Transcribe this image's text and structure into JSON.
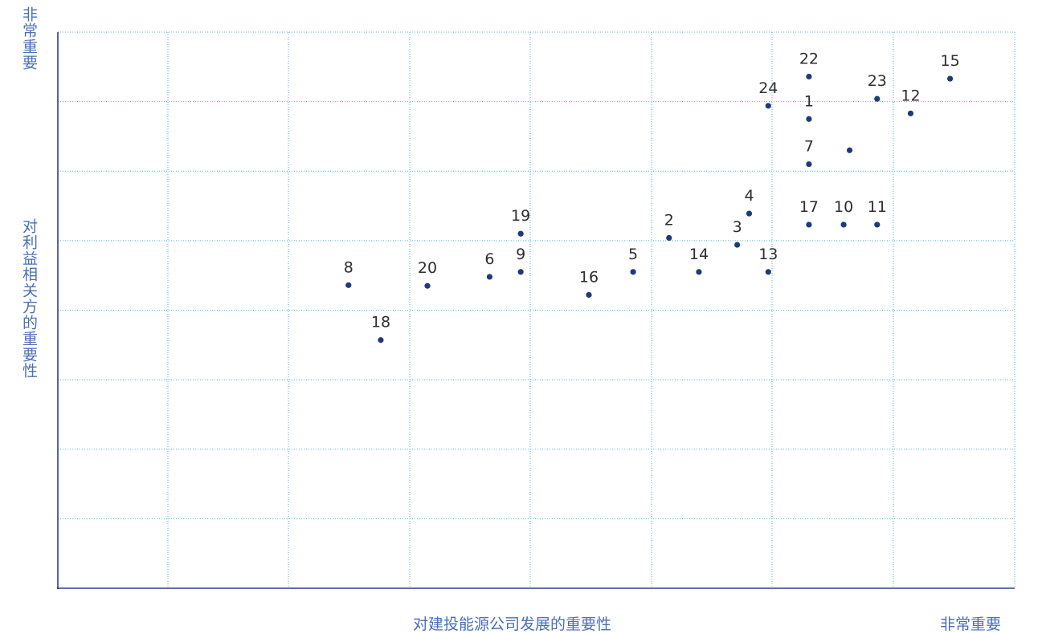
{
  "chart_data": {
    "type": "scatter",
    "xlabel": "对建投能源公司发展的重要性",
    "ylabel": "对利益相关方的重要性",
    "x_high_label": "非常重要",
    "y_high_label": "非常重要",
    "xlim": [
      0,
      8
    ],
    "ylim": [
      0,
      8
    ],
    "grid": true,
    "points": [
      {
        "label": "1",
        "x": 6.28,
        "y": 6.75
      },
      {
        "label": "2",
        "x": 5.11,
        "y": 5.04
      },
      {
        "label": "3",
        "x": 5.68,
        "y": 4.94
      },
      {
        "label": "4",
        "x": 5.78,
        "y": 5.39
      },
      {
        "label": "5",
        "x": 4.81,
        "y": 4.55
      },
      {
        "label": "6",
        "x": 3.61,
        "y": 4.48
      },
      {
        "label": "7",
        "x": 6.28,
        "y": 6.1
      },
      {
        "label": "",
        "x": 6.62,
        "y": 6.3
      },
      {
        "label": "8",
        "x": 2.43,
        "y": 4.36
      },
      {
        "label": "9",
        "x": 3.87,
        "y": 4.55
      },
      {
        "label": "10",
        "x": 6.57,
        "y": 5.23
      },
      {
        "label": "11",
        "x": 6.85,
        "y": 5.23
      },
      {
        "label": "12",
        "x": 7.13,
        "y": 6.83
      },
      {
        "label": "13",
        "x": 5.94,
        "y": 4.55
      },
      {
        "label": "14",
        "x": 5.36,
        "y": 4.55
      },
      {
        "label": "15",
        "x": 7.46,
        "y": 7.33
      },
      {
        "label": "16",
        "x": 4.44,
        "y": 4.22
      },
      {
        "label": "17",
        "x": 6.28,
        "y": 5.23
      },
      {
        "label": "18",
        "x": 2.7,
        "y": 3.57
      },
      {
        "label": "19",
        "x": 3.87,
        "y": 5.1
      },
      {
        "label": "20",
        "x": 3.09,
        "y": 4.35
      },
      {
        "label": "22",
        "x": 6.28,
        "y": 7.36
      },
      {
        "label": "23",
        "x": 6.85,
        "y": 7.04
      },
      {
        "label": "24",
        "x": 5.94,
        "y": 6.94
      }
    ]
  }
}
